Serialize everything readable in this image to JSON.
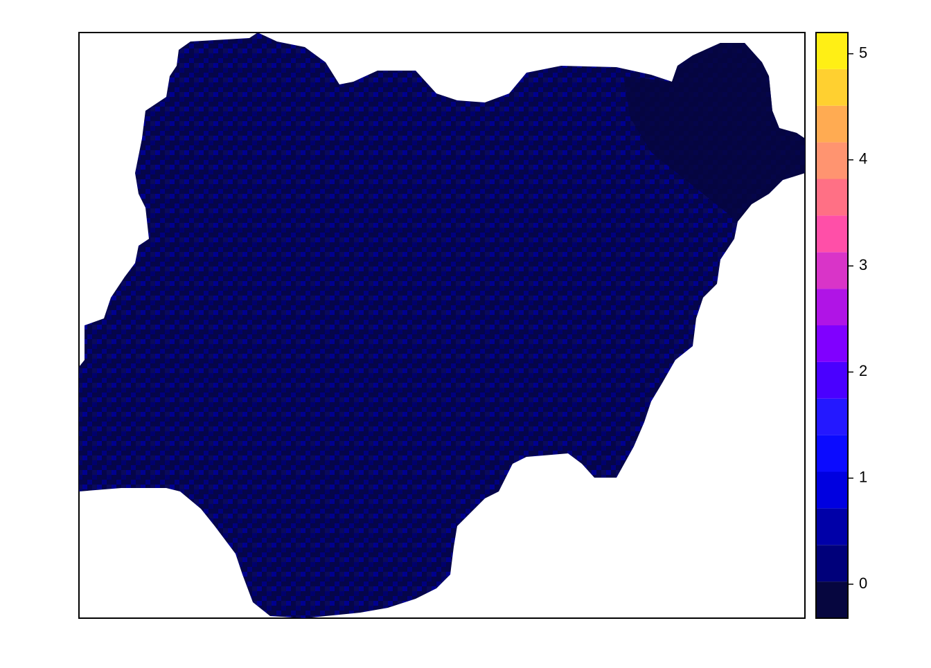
{
  "chart_data": {
    "type": "raster-map",
    "legend": {
      "breaks": [
        -0.32,
        0.025,
        0.37,
        0.715,
        1.06,
        1.405,
        1.75,
        2.095,
        2.44,
        2.785,
        3.13,
        3.475,
        3.82,
        4.165,
        4.51,
        4.855,
        5.2
      ],
      "colors": [
        "#06063f",
        "#00007a",
        "#0000a8",
        "#0000e0",
        "#0b0bff",
        "#2418ff",
        "#4a00ff",
        "#8000ff",
        "#b014e6",
        "#d934c8",
        "#ff4fa8",
        "#ff7085",
        "#ff9470",
        "#ffab52",
        "#ffd030",
        "#ffef15"
      ],
      "top_color": "#ffff55"
    },
    "ylim": [
      -0.32,
      5.2
    ],
    "yticks": [
      0,
      1,
      2,
      3,
      4,
      5
    ]
  }
}
